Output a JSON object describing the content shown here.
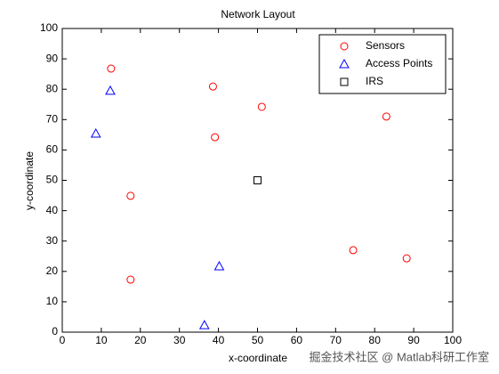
{
  "chart_data": {
    "type": "scatter",
    "title": "Network Layout",
    "xlabel": "x-coordinate",
    "ylabel": "y-coordinate",
    "xlim": [
      0,
      100
    ],
    "ylim": [
      0,
      100
    ],
    "xticks": [
      0,
      10,
      20,
      30,
      40,
      50,
      60,
      70,
      80,
      90,
      100
    ],
    "yticks": [
      0,
      10,
      20,
      30,
      40,
      50,
      60,
      70,
      80,
      90,
      100
    ],
    "legend": "upper right",
    "series": [
      {
        "name": "Sensors",
        "color": "#ff0000",
        "marker": "o",
        "x": [
          12.5,
          38.6,
          51.1,
          83,
          39.1,
          17.5,
          74.5,
          88.2,
          17.5
        ],
        "values": [
          86.8,
          80.9,
          74.2,
          71,
          64.2,
          44.9,
          27,
          24.3,
          17.3
        ]
      },
      {
        "name": "Access Points",
        "color": "#0000ff",
        "marker": "^",
        "x": [
          12.3,
          8.6,
          40.2,
          36.4
        ],
        "values": [
          79.5,
          65.4,
          21.7,
          2.3
        ]
      },
      {
        "name": "IRS",
        "color": "#000000",
        "marker": "s",
        "x": [
          50
        ],
        "values": [
          50
        ]
      }
    ],
    "watermark": "掘金技术社区 @ Matlab科研工作室"
  }
}
